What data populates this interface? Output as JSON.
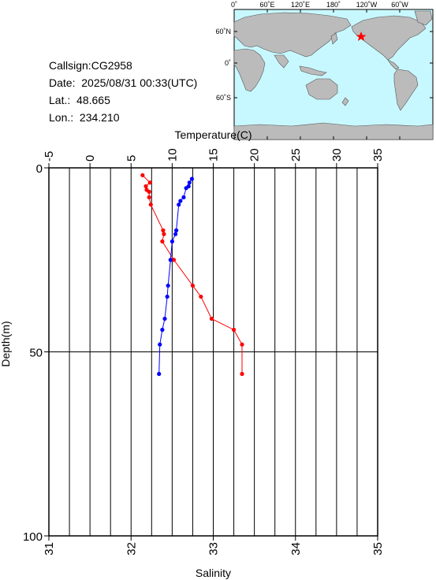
{
  "station": {
    "callsign_label": "Callsign:",
    "callsign": "CG2958",
    "date_label": "Date:",
    "date": "2025/08/31 00:33(UTC)",
    "lat_label": "Lat.:",
    "lat": "48.665",
    "lon_label": "Lon.:",
    "lon": "234.210"
  },
  "map": {
    "top_labels": [
      "0˚",
      "60˚E",
      "120˚E",
      "180˚",
      "120˚W",
      "60˚W"
    ],
    "left_labels": [
      "60˚N",
      "0˚",
      "60˚S"
    ],
    "ocean_color": "#c8f8ff",
    "land_color": "#bbbbbb",
    "marker_color": "#ff0000",
    "marker": "red-star"
  },
  "chart_data": {
    "type": "line",
    "xlabel_top": "Temperature(C)",
    "xlabel_bottom": "Salinity",
    "ylabel": "Depth(m)",
    "temperature_ticks": [
      -5,
      0,
      5,
      10,
      15,
      20,
      25,
      30,
      35
    ],
    "salinity_ticks": [
      31,
      32,
      33,
      34,
      35
    ],
    "depth_ticks": [
      0,
      50,
      100
    ],
    "temperature_range": [
      -5,
      35
    ],
    "salinity_range": [
      31,
      35
    ],
    "depth_range": [
      0,
      100
    ],
    "grid": "vertical lines, horizontal line at depth 50",
    "series": [
      {
        "color": "#ff0000",
        "points": [
          [
            6.4,
            2
          ],
          [
            7.3,
            4
          ],
          [
            6.8,
            5
          ],
          [
            6.9,
            6
          ],
          [
            7.2,
            6.5
          ],
          [
            7.2,
            8
          ],
          [
            7.4,
            10
          ],
          [
            8.9,
            17
          ],
          [
            9.0,
            18
          ],
          [
            8.8,
            20
          ],
          [
            10.2,
            25
          ],
          [
            12.5,
            32
          ],
          [
            13.5,
            35
          ],
          [
            14.8,
            41
          ],
          [
            17.5,
            44
          ],
          [
            18.5,
            48
          ],
          [
            18.5,
            56
          ]
        ]
      },
      {
        "color": "#0000ff",
        "points": [
          [
            32.74,
            3
          ],
          [
            32.71,
            4
          ],
          [
            32.7,
            5
          ],
          [
            32.67,
            5.5
          ],
          [
            32.64,
            8
          ],
          [
            32.6,
            9
          ],
          [
            32.58,
            10
          ],
          [
            32.55,
            17
          ],
          [
            32.54,
            18
          ],
          [
            32.5,
            20
          ],
          [
            32.48,
            25
          ],
          [
            32.45,
            32
          ],
          [
            32.44,
            35
          ],
          [
            32.41,
            41
          ],
          [
            32.38,
            44
          ],
          [
            32.35,
            48
          ],
          [
            32.34,
            56
          ]
        ]
      }
    ]
  }
}
